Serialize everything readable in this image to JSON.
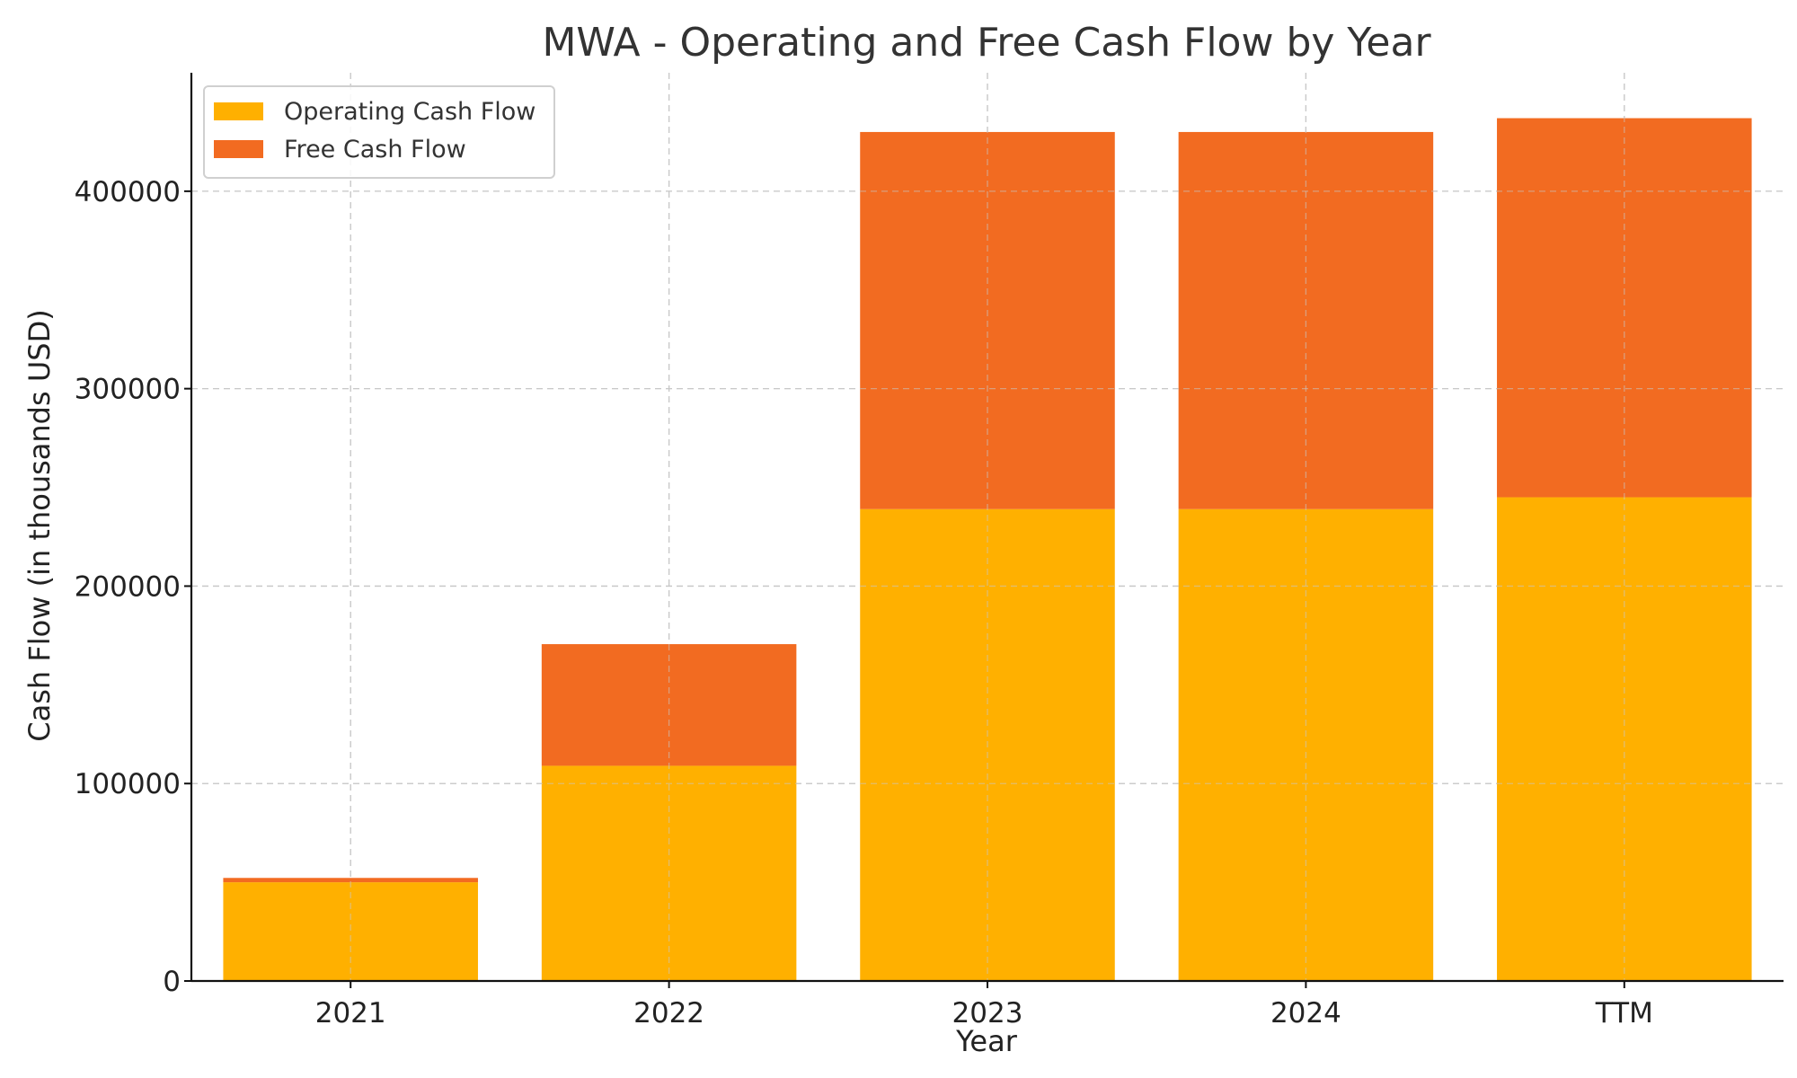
{
  "chart_data": {
    "type": "bar",
    "stacked": true,
    "title": "MWA - Operating and Free Cash Flow by Year",
    "xlabel": "Year",
    "ylabel": "Cash Flow (in thousands USD)",
    "categories": [
      "2021",
      "2022",
      "2023",
      "2024",
      "TTM"
    ],
    "series": [
      {
        "name": "Operating Cash Flow",
        "color": "#FFB000",
        "values": [
          50000,
          109000,
          239000,
          239000,
          245000
        ]
      },
      {
        "name": "Free Cash Flow",
        "color": "#F26B21",
        "values": [
          2200,
          61600,
          191000,
          191000,
          192000
        ]
      }
    ],
    "ylim": [
      0,
      460000
    ],
    "yticks": [
      0,
      100000,
      200000,
      300000,
      400000
    ],
    "grid": true,
    "legend_position": "top-left"
  }
}
